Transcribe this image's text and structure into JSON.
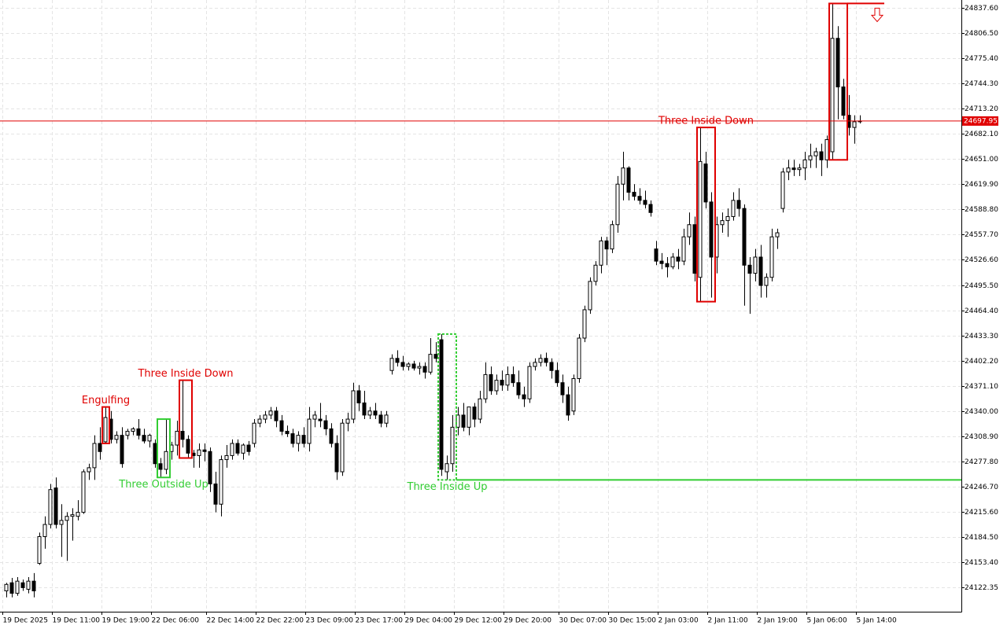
{
  "chart_data": {
    "type": "candlestick",
    "categories": [
      "19 Dec 2025",
      null,
      null,
      null,
      null,
      null,
      null,
      null,
      null,
      "19 Dec 11:00",
      null,
      null,
      null,
      null,
      null,
      null,
      null,
      null,
      "19 Dec 19:00",
      null,
      null,
      null,
      null,
      null,
      null,
      null,
      null,
      "22 Dec 06:00",
      null,
      null,
      null,
      null,
      null,
      null,
      null,
      null,
      null,
      "22 Dec 14:00",
      null,
      null,
      null,
      null,
      null,
      null,
      null,
      null,
      "22 Dec 22:00",
      null,
      null,
      null,
      null,
      null,
      null,
      null,
      null,
      "23 Dec 09:00",
      null,
      null,
      null,
      null,
      null,
      null,
      null,
      null,
      "23 Dec 17:00",
      null,
      null,
      null,
      null,
      null,
      null,
      null,
      null,
      "29 Dec 04:00",
      null,
      null,
      null,
      null,
      null,
      null,
      null,
      null,
      "29 Dec 12:00",
      null,
      null,
      null,
      null,
      null,
      null,
      null,
      null,
      "29 Dec 20:00",
      null,
      null,
      null,
      null,
      null,
      null,
      null,
      null,
      null,
      "30 Dec 07:00",
      null,
      null,
      null,
      null,
      null,
      null,
      null,
      null,
      "30 Dec 15:00",
      null,
      null,
      null,
      null,
      null,
      null,
      null,
      null,
      "2 Jan 03:00",
      null,
      null,
      null,
      null,
      null,
      null,
      null,
      null,
      "2 Jan 11:00",
      null,
      null,
      null,
      null,
      null,
      null,
      null,
      null,
      "2 Jan 19:00",
      null,
      null,
      null,
      null,
      null,
      null,
      null,
      null,
      "5 Jan 06:00",
      null,
      null,
      null,
      null,
      null,
      null,
      null,
      null,
      "5 Jan 14:00"
    ],
    "open": [
      24118,
      24128,
      24115,
      24128,
      24120,
      24130,
      24152,
      24185,
      24200,
      24245,
      24200,
      24205,
      24210,
      24210,
      24215,
      24265,
      24270,
      24300,
      24302,
      24330,
      24305,
      24310,
      24310,
      24315,
      24318,
      24310,
      24303,
      24300,
      24275,
      24268,
      24290,
      24298,
      24315,
      24305,
      24288,
      24285,
      24292,
      24290,
      24250,
      24225,
      24280,
      24285,
      24300,
      24288,
      24298,
      24300,
      24325,
      24330,
      24335,
      24340,
      24328,
      24315,
      24312,
      24300,
      24310,
      24300,
      24330,
      24330,
      24328,
      24318,
      24300,
      24265,
      24325,
      24330,
      24365,
      24350,
      24335,
      24340,
      24335,
      24325,
      24390,
      24405,
      24400,
      24395,
      24398,
      24393,
      24395,
      24388,
      24410,
      24428,
      24265,
      24275,
      24320,
      24335,
      24320,
      24345,
      24330,
      24355,
      24385,
      24365,
      24378,
      24372,
      24385,
      24375,
      24360,
      24355,
      24395,
      24400,
      24405,
      24400,
      24390,
      24375,
      24360,
      24340,
      24380,
      24430,
      24465,
      24500,
      24520,
      24550,
      24540,
      24570,
      24620,
      24640,
      24610,
      24605,
      24600,
      24595,
      24540,
      24525,
      24522,
      24518,
      24530,
      24525,
      24555,
      24570,
      24505,
      24645,
      24598,
      24530,
      24570,
      24575,
      24580,
      24600,
      24590,
      24520,
      24510,
      24530,
      24495,
      24505,
      24555,
      24590,
      24635,
      24640,
      24638,
      24640,
      24650,
      24655,
      24660,
      24650,
      24660,
      24800,
      24740,
      24705,
      24690,
      24697
    ],
    "high": [
      24128,
      24134,
      24135,
      24132,
      24135,
      24140,
      24190,
      24210,
      24250,
      24258,
      24225,
      24215,
      24220,
      24230,
      24268,
      24275,
      24310,
      24320,
      24345,
      24340,
      24315,
      24320,
      24318,
      24320,
      24330,
      24318,
      24312,
      24305,
      24282,
      24330,
      24302,
      24328,
      24378,
      24310,
      24292,
      24300,
      24300,
      24295,
      24265,
      24285,
      24298,
      24305,
      24305,
      24300,
      24303,
      24330,
      24335,
      24340,
      24345,
      24345,
      24335,
      24322,
      24318,
      24315,
      24320,
      24345,
      24340,
      24350,
      24335,
      24325,
      24310,
      24330,
      24338,
      24375,
      24372,
      24365,
      24345,
      24350,
      24340,
      24340,
      24410,
      24415,
      24408,
      24400,
      24402,
      24400,
      24400,
      24430,
      24425,
      24435,
      24285,
      24335,
      24345,
      24350,
      24345,
      24350,
      24365,
      24400,
      24395,
      24385,
      24390,
      24395,
      24395,
      24390,
      24370,
      24400,
      24405,
      24410,
      24412,
      24405,
      24400,
      24385,
      24370,
      24385,
      24435,
      24470,
      24505,
      24525,
      24555,
      24555,
      24575,
      24630,
      24660,
      24642,
      24620,
      24615,
      24612,
      24600,
      24550,
      24535,
      24530,
      24535,
      24540,
      24565,
      24585,
      24580,
      24690,
      24660,
      24610,
      24580,
      24585,
      24590,
      24610,
      24615,
      24595,
      24530,
      24540,
      24545,
      24510,
      24565,
      24565,
      24640,
      24650,
      24650,
      24645,
      24660,
      24670,
      24665,
      24670,
      24680,
      24843,
      24815,
      24750,
      24730,
      24705,
      24705
    ],
    "low": [
      24110,
      24110,
      24112,
      24118,
      24115,
      24110,
      24150,
      24170,
      24195,
      24195,
      24160,
      24155,
      24180,
      24205,
      24213,
      24255,
      24255,
      24280,
      24300,
      24300,
      24300,
      24270,
      24305,
      24310,
      24305,
      24300,
      24295,
      24270,
      24258,
      24262,
      24280,
      24285,
      24295,
      24282,
      24270,
      24270,
      24278,
      24240,
      24215,
      24210,
      24270,
      24280,
      24285,
      24280,
      24285,
      24295,
      24320,
      24325,
      24330,
      24320,
      24310,
      24308,
      24295,
      24290,
      24295,
      24290,
      24320,
      24320,
      24310,
      24295,
      24255,
      24260,
      24315,
      24325,
      24340,
      24330,
      24330,
      24330,
      24320,
      24320,
      24385,
      24395,
      24390,
      24390,
      24390,
      24385,
      24380,
      24385,
      24400,
      24260,
      24255,
      24265,
      24310,
      24315,
      24310,
      24320,
      24325,
      24350,
      24360,
      24360,
      24365,
      24365,
      24370,
      24355,
      24345,
      24350,
      24390,
      24395,
      24395,
      24380,
      24370,
      24350,
      24328,
      24335,
      24375,
      24425,
      24460,
      24495,
      24510,
      24520,
      24535,
      24560,
      24600,
      24600,
      24600,
      24595,
      24590,
      24580,
      24520,
      24515,
      24505,
      24515,
      24515,
      24520,
      24545,
      24500,
      24475,
      24590,
      24480,
      24510,
      24560,
      24555,
      24575,
      24580,
      24470,
      24460,
      24500,
      24480,
      24480,
      24500,
      24540,
      24585,
      24625,
      24630,
      24630,
      24625,
      24640,
      24640,
      24630,
      24640,
      24650,
      24700,
      24700,
      24680,
      24670,
      24695
    ],
    "close": [
      24126,
      24115,
      24130,
      24122,
      24130,
      24118,
      24185,
      24200,
      24243,
      24200,
      24205,
      24210,
      24212,
      24215,
      24265,
      24270,
      24300,
      24290,
      24332,
      24305,
      24310,
      24275,
      24315,
      24318,
      24310,
      24303,
      24310,
      24275,
      24268,
      24290,
      24298,
      24315,
      24305,
      24288,
      24285,
      24292,
      24290,
      24250,
      24225,
      24280,
      24285,
      24300,
      24288,
      24298,
      24290,
      24325,
      24330,
      24335,
      24340,
      24328,
      24315,
      24312,
      24300,
      24310,
      24300,
      24330,
      24335,
      24328,
      24318,
      24300,
      24265,
      24325,
      24330,
      24365,
      24350,
      24335,
      24340,
      24335,
      24325,
      24335,
      24405,
      24400,
      24395,
      24398,
      24393,
      24395,
      24388,
      24410,
      24405,
      24268,
      24275,
      24320,
      24335,
      24320,
      24345,
      24330,
      24355,
      24385,
      24365,
      24378,
      24372,
      24385,
      24375,
      24360,
      24355,
      24395,
      24400,
      24405,
      24400,
      24390,
      24375,
      24360,
      24335,
      24380,
      24430,
      24465,
      24500,
      24520,
      24550,
      24540,
      24570,
      24620,
      24640,
      24610,
      24605,
      24600,
      24595,
      24585,
      24525,
      24522,
      24518,
      24530,
      24525,
      24555,
      24570,
      24510,
      24648,
      24598,
      24530,
      24570,
      24575,
      24580,
      24600,
      24590,
      24520,
      24510,
      24530,
      24495,
      24505,
      24555,
      24560,
      24635,
      24640,
      24638,
      24640,
      24650,
      24655,
      24660,
      24650,
      24675,
      24800,
      24740,
      24705,
      24690,
      24697,
      24697.95
    ],
    "up_color": "#ffffff",
    "down_color": "#000000",
    "ylim": [
      24092.3,
      24847.3
    ],
    "yticks": [
      24122.35,
      {
        "value": 24153.4,
        "label": "24153.40"
      },
      {
        "value": 24184.5,
        "label": "24184.50"
      },
      {
        "value": 24215.6,
        "label": "24215.60"
      },
      {
        "value": 24246.7,
        "label": "24246.70"
      },
      {
        "value": 24277.8,
        "label": "24277.80"
      },
      {
        "value": 24308.9,
        "label": "24308.90"
      },
      {
        "value": 24340,
        "label": "24340.00"
      },
      {
        "value": 24371.1,
        "label": "24371.10"
      },
      {
        "value": 24402.2,
        "label": "24402.20"
      },
      {
        "value": 24433.3,
        "label": "24433.30"
      },
      {
        "value": 24464.4,
        "label": "24464.40"
      },
      {
        "value": 24495.5,
        "label": "24495.50"
      },
      {
        "value": 24526.6,
        "label": "24526.60"
      },
      {
        "value": 24557.7,
        "label": "24557.70"
      },
      {
        "value": 24588.8,
        "label": "24588.80"
      },
      {
        "value": 24619.9,
        "label": "24619.90"
      },
      {
        "value": 24651,
        "label": "24651.00"
      },
      {
        "value": 24682.1,
        "label": "24682.10"
      },
      {
        "value": 24713.2,
        "label": "24713.20"
      },
      {
        "value": 24744.3,
        "label": "24744.30"
      },
      {
        "value": 24775.4,
        "label": "24775.40"
      },
      {
        "value": 24806.5,
        "label": "24806.50"
      },
      {
        "value": 24837.6,
        "label": "24837.60"
      }
    ],
    "grid": true,
    "last_price": 24697.95,
    "last_price_color": "#e00000",
    "patterns": [
      {
        "label": "Engulfing",
        "color": "#e00000",
        "candles": [
          18,
          18
        ],
        "side": "above"
      },
      {
        "label": "Three Outside Up",
        "color": "#32cd32",
        "candles": [
          28,
          29
        ],
        "side": "below"
      },
      {
        "label": "Three Inside Down",
        "color": "#e00000",
        "candles": [
          32,
          33
        ],
        "side": "above"
      },
      {
        "label": "Three Inside Up",
        "color": "#32cd32",
        "candles": [
          79,
          81
        ],
        "side": "below",
        "dashed": true,
        "extend": true
      },
      {
        "label": "Three Inside Down",
        "color": "#e00000",
        "candles": [
          126,
          128
        ],
        "side": "above"
      },
      {
        "label": "Three Inside Down",
        "color": "#e00000",
        "candles": [
          150,
          152
        ],
        "side": "above",
        "extend": true,
        "arrow": true
      }
    ]
  }
}
